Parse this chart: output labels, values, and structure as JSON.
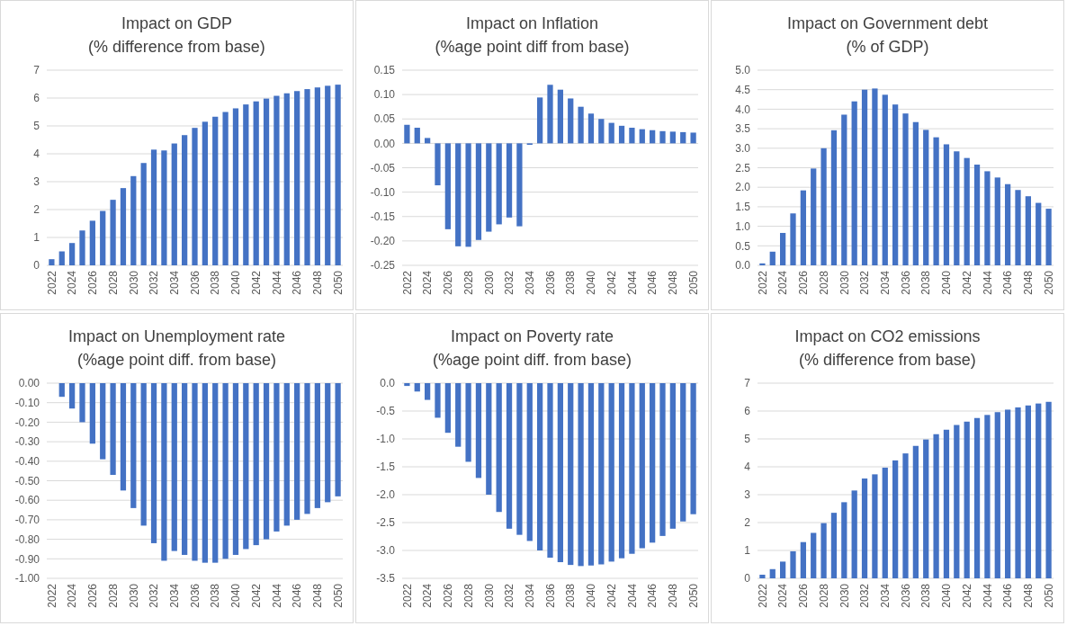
{
  "chart_data": [
    {
      "type": "bar",
      "title": "Impact on GDP",
      "subtitle": "(% difference from base)",
      "categories": [
        "2022",
        null,
        "2024",
        null,
        "2026",
        null,
        "2028",
        null,
        "2030",
        null,
        "2032",
        null,
        "2034",
        null,
        "2036",
        null,
        "2038",
        null,
        "2040",
        null,
        "2042",
        null,
        "2044",
        null,
        "2046",
        null,
        "2048",
        null,
        "2050"
      ],
      "color": "#4472c4",
      "grid": "y",
      "ylim": [
        0,
        7
      ],
      "yticks": [
        0,
        1,
        2,
        3,
        4,
        5,
        6,
        7
      ],
      "values": [
        0.22,
        0.5,
        0.8,
        1.25,
        1.6,
        1.95,
        2.35,
        2.77,
        3.2,
        3.67,
        4.15,
        4.12,
        4.37,
        4.67,
        4.93,
        5.15,
        5.33,
        5.5,
        5.63,
        5.77,
        5.88,
        5.98,
        6.08,
        6.17,
        6.25,
        6.32,
        6.38,
        6.44,
        6.48
      ]
    },
    {
      "type": "bar",
      "title": "Impact on Inflation",
      "subtitle": "(%age point diff from base)",
      "categories": [
        "2022",
        null,
        "2024",
        null,
        "2026",
        null,
        "2028",
        null,
        "2030",
        null,
        "2032",
        null,
        "2034",
        null,
        "2036",
        null,
        "2038",
        null,
        "2040",
        null,
        "2042",
        null,
        "2044",
        null,
        "2046",
        null,
        "2048",
        null,
        "2050"
      ],
      "color": "#4472c4",
      "grid": "y",
      "ylim": [
        -0.25,
        0.15
      ],
      "yticks": [
        {
          "value": -0.25,
          "label": "-0.25"
        },
        {
          "value": -0.2,
          "label": "-0.20"
        },
        {
          "value": -0.15,
          "label": "-0.15"
        },
        {
          "value": -0.1,
          "label": "-0.10"
        },
        {
          "value": -0.05,
          "label": "-0.05"
        },
        {
          "value": 0,
          "label": "0.00"
        },
        {
          "value": 0.05,
          "label": "0.05"
        },
        {
          "value": 0.1,
          "label": "0.10"
        },
        {
          "value": 0.15,
          "label": "0.15"
        }
      ],
      "values": [
        0.038,
        0.032,
        0.011,
        -0.086,
        -0.176,
        -0.211,
        -0.212,
        -0.198,
        -0.181,
        -0.166,
        -0.152,
        -0.17,
        -0.003,
        0.094,
        0.12,
        0.11,
        0.092,
        0.075,
        0.061,
        0.05,
        0.042,
        0.036,
        0.032,
        0.029,
        0.027,
        0.025,
        0.024,
        0.023,
        0.022
      ]
    },
    {
      "type": "bar",
      "title": "Impact on Government debt",
      "subtitle": "(% of GDP)",
      "categories": [
        "2022",
        null,
        "2024",
        null,
        "2026",
        null,
        "2028",
        null,
        "2030",
        null,
        "2032",
        null,
        "2034",
        null,
        "2036",
        null,
        "2038",
        null,
        "2040",
        null,
        "2042",
        null,
        "2044",
        null,
        "2046",
        null,
        "2048",
        null,
        "2050"
      ],
      "color": "#4472c4",
      "grid": "y",
      "ylim": [
        0,
        5
      ],
      "yticks": [
        {
          "value": 0,
          "label": "0.0"
        },
        {
          "value": 0.5,
          "label": "0.5"
        },
        {
          "value": 1,
          "label": "1.0"
        },
        {
          "value": 1.5,
          "label": "1.5"
        },
        {
          "value": 2,
          "label": "2.0"
        },
        {
          "value": 2.5,
          "label": "2.5"
        },
        {
          "value": 3,
          "label": "3.0"
        },
        {
          "value": 3.5,
          "label": "3.5"
        },
        {
          "value": 4,
          "label": "4.0"
        },
        {
          "value": 4.5,
          "label": "4.5"
        },
        {
          "value": 5,
          "label": "5.0"
        }
      ],
      "values": [
        0.05,
        0.35,
        0.83,
        1.33,
        1.92,
        2.48,
        3.0,
        3.46,
        3.86,
        4.2,
        4.5,
        4.53,
        4.37,
        4.12,
        3.89,
        3.67,
        3.47,
        3.28,
        3.1,
        2.92,
        2.75,
        2.58,
        2.41,
        2.25,
        2.08,
        1.93,
        1.77,
        1.6,
        1.45
      ]
    },
    {
      "type": "bar",
      "title": "Impact on Unemployment rate",
      "subtitle": "(%age point diff. from base)",
      "categories": [
        "2022",
        null,
        "2024",
        null,
        "2026",
        null,
        "2028",
        null,
        "2030",
        null,
        "2032",
        null,
        "2034",
        null,
        "2036",
        null,
        "2038",
        null,
        "2040",
        null,
        "2042",
        null,
        "2044",
        null,
        "2046",
        null,
        "2048",
        null,
        "2050"
      ],
      "color": "#4472c4",
      "grid": "y",
      "ylim": [
        -1,
        0
      ],
      "yticks": [
        {
          "value": -1,
          "label": "-1.00"
        },
        {
          "value": -0.9,
          "label": "-0.90"
        },
        {
          "value": -0.8,
          "label": "-0.80"
        },
        {
          "value": -0.7,
          "label": "-0.70"
        },
        {
          "value": -0.6,
          "label": "-0.60"
        },
        {
          "value": -0.5,
          "label": "-0.50"
        },
        {
          "value": -0.4,
          "label": "-0.40"
        },
        {
          "value": -0.3,
          "label": "-0.30"
        },
        {
          "value": -0.2,
          "label": "-0.20"
        },
        {
          "value": -0.1,
          "label": "-0.10"
        },
        {
          "value": 0,
          "label": "0.00"
        }
      ],
      "values": [
        0,
        -0.07,
        -0.13,
        -0.2,
        -0.31,
        -0.39,
        -0.47,
        -0.55,
        -0.64,
        -0.73,
        -0.82,
        -0.91,
        -0.86,
        -0.88,
        -0.91,
        -0.92,
        -0.92,
        -0.9,
        -0.88,
        -0.85,
        -0.83,
        -0.8,
        -0.76,
        -0.73,
        -0.7,
        -0.67,
        -0.64,
        -0.61,
        -0.58
      ]
    },
    {
      "type": "bar",
      "title": "Impact on Poverty rate",
      "subtitle": "(%age point diff. from base)",
      "categories": [
        "2022",
        null,
        "2024",
        null,
        "2026",
        null,
        "2028",
        null,
        "2030",
        null,
        "2032",
        null,
        "2034",
        null,
        "2036",
        null,
        "2038",
        null,
        "2040",
        null,
        "2042",
        null,
        "2044",
        null,
        "2046",
        null,
        "2048",
        null,
        "2050"
      ],
      "color": "#4472c4",
      "grid": "y",
      "ylim": [
        -3.5,
        0
      ],
      "yticks": [
        {
          "value": -3.5,
          "label": "-3.5"
        },
        {
          "value": -3,
          "label": "-3.0"
        },
        {
          "value": -2.5,
          "label": "-2.5"
        },
        {
          "value": -2,
          "label": "-2.0"
        },
        {
          "value": -1.5,
          "label": "-1.5"
        },
        {
          "value": -1,
          "label": "-1.0"
        },
        {
          "value": -0.5,
          "label": "-0.5"
        },
        {
          "value": 0,
          "label": "0.0"
        }
      ],
      "values": [
        -0.05,
        -0.15,
        -0.3,
        -0.62,
        -0.89,
        -1.14,
        -1.41,
        -1.7,
        -2.0,
        -2.31,
        -2.61,
        -2.72,
        -2.83,
        -3.0,
        -3.13,
        -3.21,
        -3.26,
        -3.28,
        -3.27,
        -3.25,
        -3.2,
        -3.14,
        -3.06,
        -2.96,
        -2.86,
        -2.74,
        -2.61,
        -2.48,
        -2.35
      ]
    },
    {
      "type": "bar",
      "title": "Impact on CO2 emissions",
      "subtitle": "(% difference from base)",
      "categories": [
        "2022",
        null,
        "2024",
        null,
        "2026",
        null,
        "2028",
        null,
        "2030",
        null,
        "2032",
        null,
        "2034",
        null,
        "2036",
        null,
        "2038",
        null,
        "2040",
        null,
        "2042",
        null,
        "2044",
        null,
        "2046",
        null,
        "2048",
        null,
        "2050"
      ],
      "color": "#4472c4",
      "grid": "y",
      "ylim": [
        0,
        7
      ],
      "yticks": [
        0,
        1,
        2,
        3,
        4,
        5,
        6,
        7
      ],
      "values": [
        0.13,
        0.33,
        0.6,
        0.97,
        1.3,
        1.63,
        1.98,
        2.35,
        2.73,
        3.15,
        3.58,
        3.73,
        3.97,
        4.23,
        4.48,
        4.75,
        4.98,
        5.17,
        5.33,
        5.5,
        5.62,
        5.75,
        5.86,
        5.96,
        6.05,
        6.13,
        6.2,
        6.27,
        6.33
      ]
    }
  ]
}
